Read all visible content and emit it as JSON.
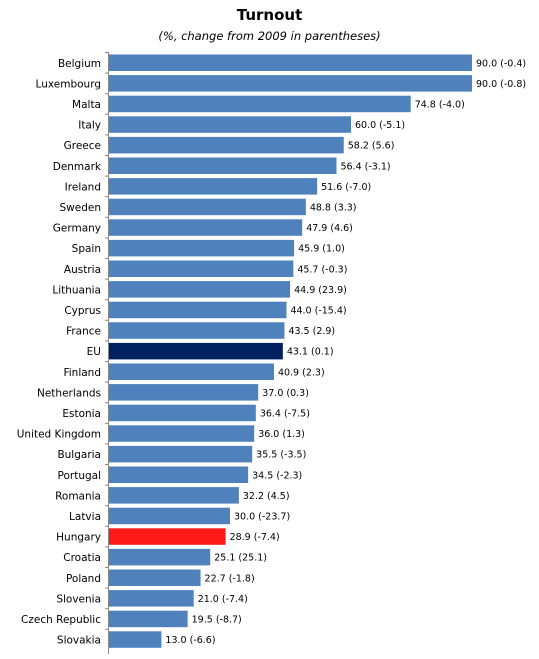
{
  "chart_data": {
    "type": "bar",
    "orientation": "horizontal",
    "title": "Turnout",
    "subtitle": "(%, change from 2009 in parentheses)",
    "xlim": [
      0,
      90
    ],
    "grid": false,
    "colors": {
      "default": "#4f81bd",
      "EU": "#002060",
      "Hungary": "#ff1a1a"
    },
    "categories": [
      "Belgium",
      "Luxembourg",
      "Malta",
      "Italy",
      "Greece",
      "Denmark",
      "Ireland",
      "Sweden",
      "Germany",
      "Spain",
      "Austria",
      "Lithuania",
      "Cyprus",
      "France",
      "EU",
      "Finland",
      "Netherlands",
      "Estonia",
      "United Kingdom",
      "Bulgaria",
      "Portugal",
      "Romania",
      "Latvia",
      "Hungary",
      "Croatia",
      "Poland",
      "Slovenia",
      "Czech Republic",
      "Slovakia"
    ],
    "values": [
      90.0,
      90.0,
      74.8,
      60.0,
      58.2,
      56.4,
      51.6,
      48.8,
      47.9,
      45.9,
      45.7,
      44.9,
      44.0,
      43.5,
      43.1,
      40.9,
      37.0,
      36.4,
      36.0,
      35.5,
      34.5,
      32.2,
      30.0,
      28.9,
      25.1,
      22.7,
      21.0,
      19.5,
      13.0
    ],
    "data_labels": [
      "90.0 (-0.4)",
      "90.0 (-0.8)",
      "74.8 (-4.0)",
      "60.0 (-5.1)",
      "58.2 (5.6)",
      "56.4 (-3.1)",
      "51.6 (-7.0)",
      "48.8 (3.3)",
      "47.9 (4.6)",
      "45.9 (1.0)",
      "45.7 (-0.3)",
      "44.9 (23.9)",
      "44.0 (-15.4)",
      "43.5 (2.9)",
      "43.1 (0.1)",
      "40.9 (2.3)",
      "37.0 (0.3)",
      "36.4 (-7.5)",
      "36.0 (1.3)",
      "35.5 (-3.5)",
      "34.5 (-2.3)",
      "32.2 (4.5)",
      "30.0 (-23.7)",
      "28.9 (-7.4)",
      "25.1 (25.1)",
      "22.7 (-1.8)",
      "21.0 (-7.4)",
      "19.5 (-8.7)",
      "13.0 (-6.6)"
    ]
  }
}
